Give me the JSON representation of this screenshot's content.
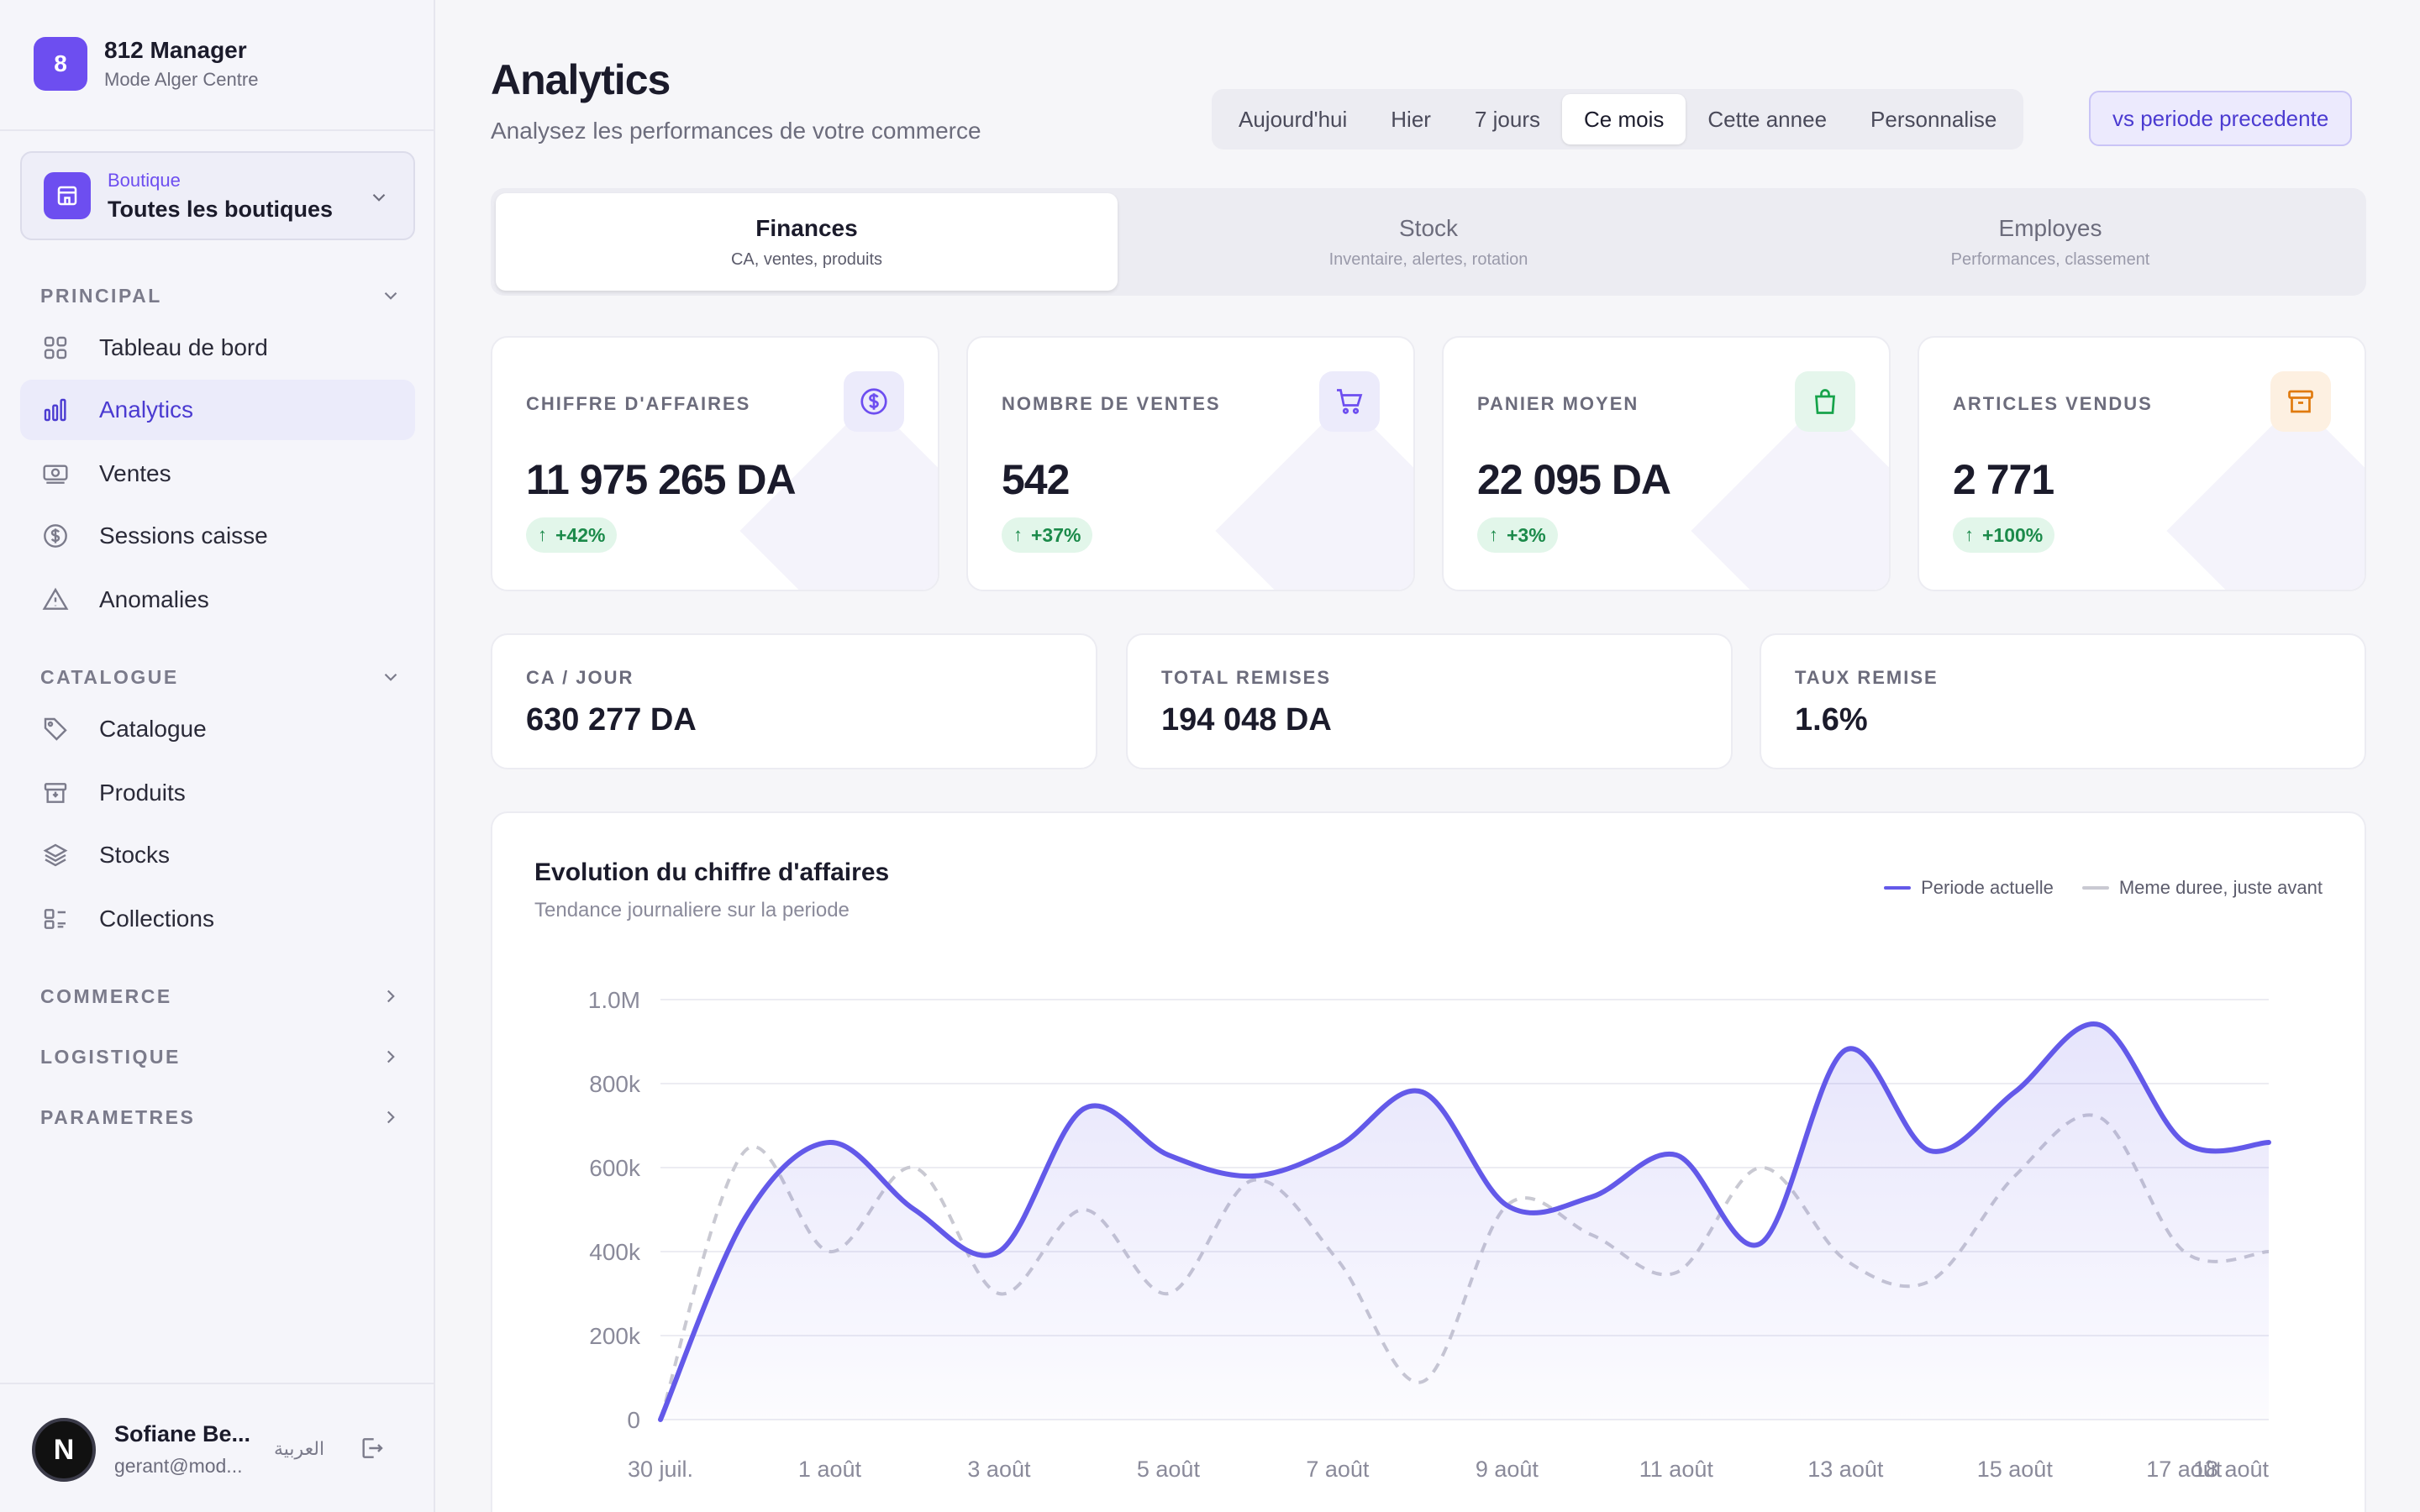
{
  "brand": {
    "initial": "8",
    "name": "812 Manager",
    "subtitle": "Mode Alger Centre"
  },
  "store": {
    "label": "Boutique",
    "value": "Toutes les boutiques"
  },
  "sidebar": {
    "sections": [
      {
        "title": "PRINCIPAL",
        "items": [
          {
            "label": "Tableau de bord",
            "icon": "grid-icon"
          },
          {
            "label": "Analytics",
            "icon": "bar-chart-icon",
            "active": true
          },
          {
            "label": "Ventes",
            "icon": "cash-icon"
          },
          {
            "label": "Sessions caisse",
            "icon": "dollar-circle-icon"
          },
          {
            "label": "Anomalies",
            "icon": "warning-icon"
          }
        ]
      },
      {
        "title": "CATALOGUE",
        "items": [
          {
            "label": "Catalogue",
            "icon": "tag-icon"
          },
          {
            "label": "Produits",
            "icon": "archive-icon"
          },
          {
            "label": "Stocks",
            "icon": "layers-icon"
          },
          {
            "label": "Collections",
            "icon": "collection-icon"
          }
        ]
      },
      {
        "title": "COMMERCE"
      },
      {
        "title": "LOGISTIQUE"
      },
      {
        "title": "PARAMETRES"
      }
    ]
  },
  "user": {
    "initial": "N",
    "name": "Sofiane Be...",
    "email": "gerant@mod...",
    "lang": "العربية"
  },
  "header": {
    "title": "Analytics",
    "subtitle": "Analysez les performances de votre commerce"
  },
  "periods": [
    "Aujourd'hui",
    "Hier",
    "7 jours",
    "Ce mois",
    "Cette annee",
    "Personnalise"
  ],
  "active_period": "Ce mois",
  "compare_label": "vs periode precedente",
  "tabs": [
    {
      "title": "Finances",
      "subtitle": "CA, ventes, produits",
      "active": true
    },
    {
      "title": "Stock",
      "subtitle": "Inventaire, alertes, rotation"
    },
    {
      "title": "Employes",
      "subtitle": "Performances, classement"
    }
  ],
  "kpis": [
    {
      "label": "CHIFFRE D'AFFAIRES",
      "value": "11 975 265 DA",
      "change": "+42%",
      "icon": "dollar-circle-icon",
      "icon_color": "#6d4ef0",
      "icon_bg": "#ecebfb"
    },
    {
      "label": "NOMBRE DE VENTES",
      "value": "542",
      "change": "+37%",
      "icon": "cart-icon",
      "icon_color": "#6d4ef0",
      "icon_bg": "#ecebfb"
    },
    {
      "label": "PANIER MOYEN",
      "value": "22 095 DA",
      "change": "+3%",
      "icon": "shopping-bag-icon",
      "icon_color": "#16a34a",
      "icon_bg": "#e5f6ec"
    },
    {
      "label": "ARTICLES VENDUS",
      "value": "2 771",
      "change": "+100%",
      "icon": "archive-icon",
      "icon_color": "#e07a0e",
      "icon_bg": "#fdf0e1"
    }
  ],
  "stats": [
    {
      "label": "CA / JOUR",
      "value": "630 277 DA"
    },
    {
      "label": "TOTAL REMISES",
      "value": "194 048 DA"
    },
    {
      "label": "TAUX REMISE",
      "value": "1.6%"
    }
  ],
  "chart": {
    "title": "Evolution du chiffre d'affaires",
    "subtitle": "Tendance journaliere sur la periode",
    "legend_current": "Periode actuelle",
    "legend_previous": "Meme duree, juste avant",
    "color_current": "#6359e9",
    "color_previous": "#c9c9d2"
  },
  "chart_data": {
    "type": "line",
    "x": [
      "30 juil.",
      "31 juil.",
      "1 août",
      "2 août",
      "3 août",
      "4 août",
      "5 août",
      "6 août",
      "7 août",
      "8 août",
      "9 août",
      "10 août",
      "11 août",
      "12 août",
      "13 août",
      "14 août",
      "15 août",
      "16 août",
      "17 août",
      "18 août"
    ],
    "x_tick_labels": [
      "30 juil.",
      "1 août",
      "3 août",
      "5 août",
      "7 août",
      "9 août",
      "11 août",
      "13 août",
      "15 août",
      "17 août",
      "18 août"
    ],
    "y_tick_labels": [
      "0",
      "200k",
      "400k",
      "600k",
      "800k",
      "1.0M"
    ],
    "ylim": [
      0,
      1000000
    ],
    "grid": true,
    "legend_position": "top-right",
    "series": [
      {
        "name": "Periode actuelle",
        "style": "solid-area",
        "values": [
          0,
          480000,
          660000,
          500000,
          400000,
          740000,
          630000,
          580000,
          650000,
          780000,
          510000,
          530000,
          630000,
          420000,
          880000,
          640000,
          780000,
          940000,
          660000,
          660000
        ]
      },
      {
        "name": "Meme duree, juste avant",
        "style": "dashed",
        "values": [
          0,
          640000,
          400000,
          600000,
          300000,
          500000,
          300000,
          570000,
          380000,
          90000,
          510000,
          440000,
          350000,
          600000,
          380000,
          330000,
          580000,
          720000,
          400000,
          400000
        ]
      }
    ]
  }
}
